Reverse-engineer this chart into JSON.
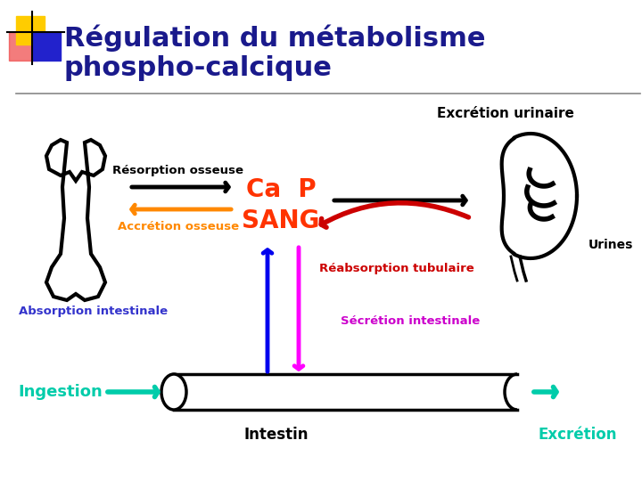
{
  "title_line1": "Régulation du métabolisme",
  "title_line2": "phospho-calcique",
  "title_color": "#1a1a8c",
  "title_fontsize": 22,
  "bg_color": "#ffffff",
  "labels": {
    "excretion_urinaire": "Excrétion urinaire",
    "resorption_osseuse": "Résorption osseuse",
    "ca_p": "Ca  P",
    "sang": "SANG",
    "accretion_osseuse": "Accrétion osseuse",
    "urines": "Urines",
    "reabsorption_tubulaire": "Réabsorption tubulaire",
    "absorption_intestinale": "Absorption intestinale",
    "secretion_intestinale": "Sécrétion intestinale",
    "ingestion": "Ingestion",
    "intestin": "Intestin",
    "excretion": "Excrétion"
  },
  "colors": {
    "ca_p_sang": "#ff3300",
    "orange": "#ff8800",
    "blue": "#0000ee",
    "magenta": "#ff00ff",
    "red": "#cc0000",
    "cyan": "#00ccaa",
    "black": "#000000",
    "title_blue": "#1a1a8c",
    "label_blue": "#3333cc"
  },
  "logo": {
    "yellow": "#ffcc00",
    "red": "#ff2222",
    "blue": "#2222cc",
    "orange": "#ff8800"
  }
}
